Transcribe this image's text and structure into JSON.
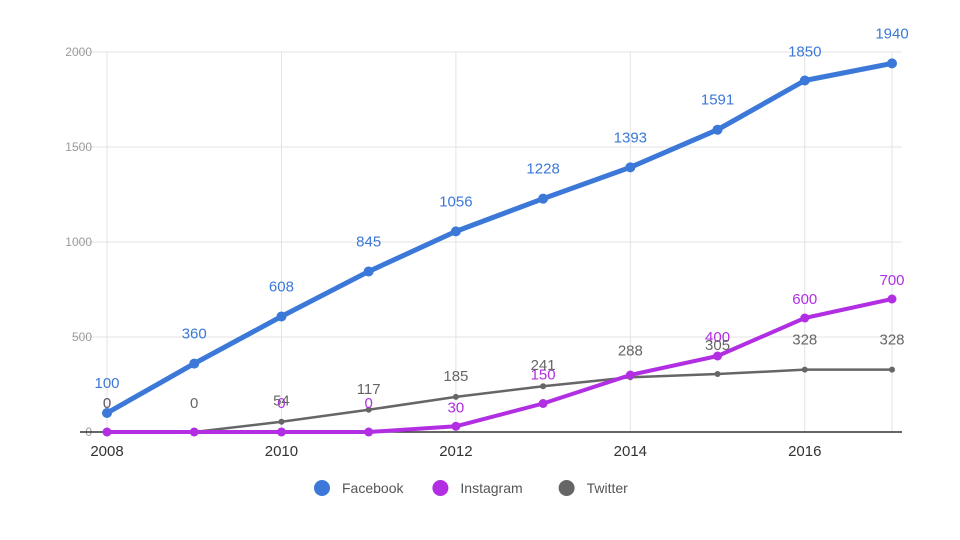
{
  "chart_data": {
    "type": "line",
    "x": [
      2008,
      2009,
      2010,
      2011,
      2012,
      2013,
      2014,
      2015,
      2016,
      2017
    ],
    "x_tick_labels": [
      "2008",
      "2010",
      "2012",
      "2014",
      "2016"
    ],
    "y_tick_labels": [
      "0",
      "500",
      "1000",
      "1500",
      "2000"
    ],
    "ylim": [
      0,
      2000
    ],
    "grid": true,
    "legend_position": "bottom",
    "series": [
      {
        "name": "Facebook",
        "color": "#3b78d8",
        "values": [
          100,
          360,
          608,
          845,
          1056,
          1228,
          1393,
          1591,
          1850,
          1940
        ],
        "labels": [
          "100",
          "360",
          "608",
          "845",
          "1056",
          "1228",
          "1393",
          "1591",
          "1850",
          "1940"
        ]
      },
      {
        "name": "Instagram",
        "color": "#b12ee3",
        "values": [
          0,
          0,
          0,
          0,
          30,
          150,
          300,
          400,
          600,
          700
        ],
        "labels": [
          "0",
          "",
          "0",
          "0",
          "30",
          "150",
          "",
          "400",
          "600",
          "700"
        ]
      },
      {
        "name": "Twitter",
        "color": "#666666",
        "values": [
          0,
          0,
          54,
          117,
          185,
          241,
          288,
          305,
          328,
          328
        ],
        "labels": [
          "0",
          "0",
          "54",
          "117",
          "185",
          "241",
          "288",
          "305",
          "328",
          "328"
        ]
      }
    ]
  }
}
